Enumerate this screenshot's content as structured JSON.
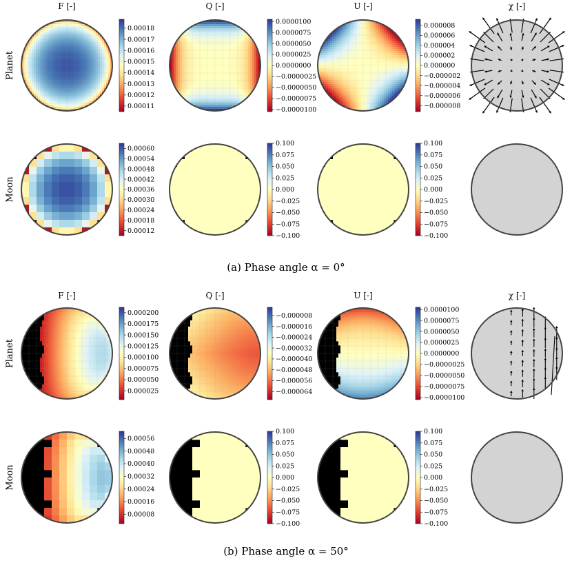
{
  "chart_data": [
    {
      "type": "heatmap",
      "caption": "(a) Phase angle α = 0°",
      "row_labels": [
        "Planet",
        "Moon"
      ],
      "column_titles": [
        "F [-]",
        "Q [-]",
        "U [-]",
        "χ [-]"
      ],
      "panels": [
        {
          "row": "Planet",
          "column": "F [-]",
          "pattern": "limb-darkened",
          "value_range": [
            0.000105,
            0.000188
          ],
          "colorbar_ticks": [
            "0.00018",
            "0.00017",
            "0.00016",
            "0.00015",
            "0.00014",
            "0.00013",
            "0.00012",
            "0.00011"
          ]
        },
        {
          "row": "Planet",
          "column": "Q [-]",
          "pattern": "Q-limb",
          "value_range": [
            -1.05e-05,
            1.05e-05
          ],
          "colorbar_ticks": [
            "0.0000100",
            "0.0000075",
            "0.0000050",
            "0.0000025",
            "0.0000000",
            "−0.0000025",
            "−0.0000050",
            "−0.0000075",
            "−0.0000100"
          ]
        },
        {
          "row": "Planet",
          "column": "U [-]",
          "pattern": "U-limb",
          "value_range": [
            -9.2e-06,
            9.2e-06
          ],
          "colorbar_ticks": [
            "0.000008",
            "0.000006",
            "0.000004",
            "0.000002",
            "0.000000",
            "−0.000002",
            "−0.000004",
            "−0.000006",
            "−0.000008"
          ]
        },
        {
          "row": "Planet",
          "column": "χ [-]",
          "pattern": "radial-vectors"
        },
        {
          "row": "Moon",
          "column": "F [-]",
          "pattern": "limb-darkened-coarse",
          "value_range": [
            9e-05,
            0.00063
          ],
          "colorbar_ticks": [
            "0.00060",
            "0.00054",
            "0.00048",
            "0.00042",
            "0.00036",
            "0.00030",
            "0.00024",
            "0.00018",
            "0.00012"
          ]
        },
        {
          "row": "Moon",
          "column": "Q [-]",
          "pattern": "uniform-zero",
          "value_range": [
            -0.1,
            0.1
          ],
          "colorbar_ticks": [
            "0.100",
            "0.075",
            "0.050",
            "0.025",
            "0.000",
            "−0.025",
            "−0.050",
            "−0.075",
            "−0.100"
          ]
        },
        {
          "row": "Moon",
          "column": "U [-]",
          "pattern": "uniform-zero",
          "value_range": [
            -0.1,
            0.1
          ],
          "colorbar_ticks": [
            "0.100",
            "0.075",
            "0.050",
            "0.025",
            "0.000",
            "−0.025",
            "−0.050",
            "−0.075",
            "−0.100"
          ]
        },
        {
          "row": "Moon",
          "column": "χ [-]",
          "pattern": "empty"
        }
      ]
    },
    {
      "type": "heatmap",
      "caption": "(b) Phase angle α = 50°",
      "row_labels": [
        "Planet",
        "Moon"
      ],
      "column_titles": [
        "F [-]",
        "Q [-]",
        "U [-]",
        "χ [-]"
      ],
      "panels": [
        {
          "row": "Planet",
          "column": "F [-]",
          "pattern": "phased-crescent",
          "value_range": [
            5e-06,
            0.000212
          ],
          "colorbar_ticks": [
            "0.000200",
            "0.000175",
            "0.000150",
            "0.000125",
            "0.000100",
            "0.000075",
            "0.000050",
            "0.000025"
          ]
        },
        {
          "row": "Planet",
          "column": "Q [-]",
          "pattern": "phased-Q",
          "value_range": [
            -7e-05,
            -2e-06
          ],
          "colorbar_ticks": [
            "−0.000008",
            "−0.000016",
            "−0.000024",
            "−0.000032",
            "−0.000040",
            "−0.000048",
            "−0.000056",
            "−0.000064"
          ]
        },
        {
          "row": "Planet",
          "column": "U [-]",
          "pattern": "phased-U",
          "value_range": [
            -1.05e-05,
            1.05e-05
          ],
          "colorbar_ticks": [
            "0.0000100",
            "0.0000075",
            "0.0000050",
            "0.0000025",
            "0.0000000",
            "−0.0000025",
            "−0.0000050",
            "−0.0000075",
            "−0.0000100"
          ]
        },
        {
          "row": "Planet",
          "column": "χ [-]",
          "pattern": "vertical-vectors"
        },
        {
          "row": "Moon",
          "column": "F [-]",
          "pattern": "phased-coarse",
          "value_range": [
            2e-05,
            0.000605
          ],
          "colorbar_ticks": [
            "0.00056",
            "0.00048",
            "0.00040",
            "0.00032",
            "0.00024",
            "0.00016",
            "0.00008"
          ]
        },
        {
          "row": "Moon",
          "column": "Q [-]",
          "pattern": "phased-zero",
          "value_range": [
            -0.1,
            0.1
          ],
          "colorbar_ticks": [
            "0.100",
            "0.075",
            "0.050",
            "0.025",
            "0.000",
            "−0.025",
            "−0.050",
            "−0.075",
            "−0.100"
          ]
        },
        {
          "row": "Moon",
          "column": "U [-]",
          "pattern": "phased-zero",
          "value_range": [
            -0.1,
            0.1
          ],
          "colorbar_ticks": [
            "0.100",
            "0.075",
            "0.050",
            "0.025",
            "0.000",
            "−0.025",
            "−0.050",
            "−0.075",
            "−0.100"
          ]
        },
        {
          "row": "Moon",
          "column": "χ [-]",
          "pattern": "empty"
        }
      ]
    }
  ],
  "colors": {
    "colormap": [
      "#a50026",
      "#d73027",
      "#f46d43",
      "#fdae61",
      "#fee090",
      "#ffffbf",
      "#e0f3f8",
      "#abd9e9",
      "#74add1",
      "#4575b4",
      "#313695"
    ],
    "night_side": "#000000",
    "empty_disk": "#d3d3d3",
    "disk_outline": "#444444",
    "vector": "#000000"
  }
}
